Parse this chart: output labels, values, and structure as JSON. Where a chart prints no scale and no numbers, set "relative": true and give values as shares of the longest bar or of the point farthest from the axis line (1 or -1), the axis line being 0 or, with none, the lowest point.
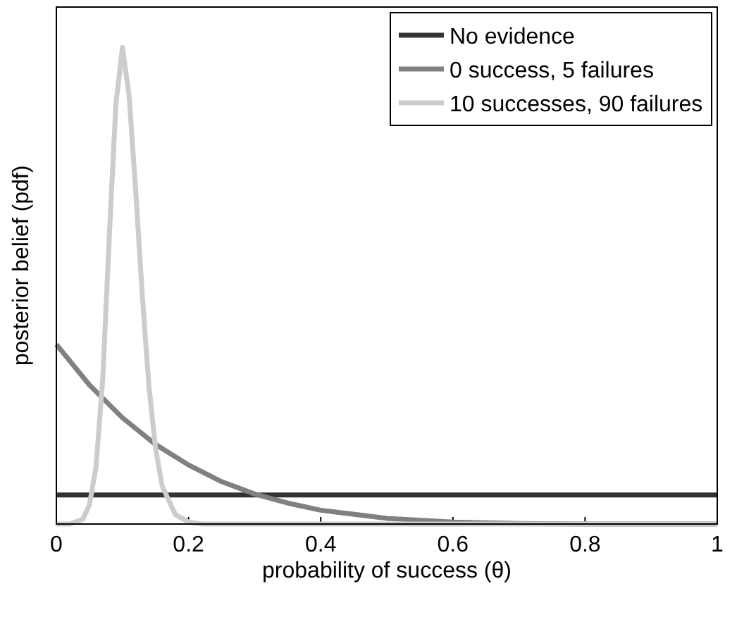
{
  "chart_data": {
    "type": "line",
    "relative": true,
    "xlabel": "probability of success (θ)",
    "ylabel": "posterior belief (pdf)",
    "xlim": [
      0,
      1
    ],
    "xticks": [
      0,
      0.2,
      0.4,
      0.6,
      0.8,
      1
    ],
    "legend": "top right",
    "grid": false,
    "marker": "none",
    "line_style": "solid",
    "series": [
      {
        "name": "No evidence",
        "color": "#333333",
        "x": [
          0,
          1
        ],
        "values": [
          0.061,
          0.061
        ]
      },
      {
        "name": "0 success, 5 failures",
        "color": "#808080",
        "x": [
          0,
          0.05,
          0.1,
          0.15,
          0.2,
          0.25,
          0.3,
          0.35,
          0.4,
          0.5,
          0.6,
          0.7,
          0.8,
          1
        ],
        "values": [
          0.377,
          0.292,
          0.223,
          0.167,
          0.124,
          0.089,
          0.063,
          0.044,
          0.029,
          0.012,
          0.004,
          0.001,
          0,
          0
        ]
      },
      {
        "name": "10 successes, 90 failures",
        "color": "#cccccc",
        "x": [
          0,
          0.02,
          0.04,
          0.05,
          0.06,
          0.07,
          0.08,
          0.09,
          0.1,
          0.11,
          0.12,
          0.13,
          0.14,
          0.15,
          0.16,
          0.18,
          0.2,
          0.22,
          0.25,
          1
        ],
        "values": [
          0,
          0,
          0.01,
          0.04,
          0.12,
          0.3,
          0.6,
          0.88,
          1,
          0.9,
          0.7,
          0.48,
          0.29,
          0.16,
          0.08,
          0.02,
          0.004,
          0,
          0,
          0
        ]
      }
    ]
  }
}
